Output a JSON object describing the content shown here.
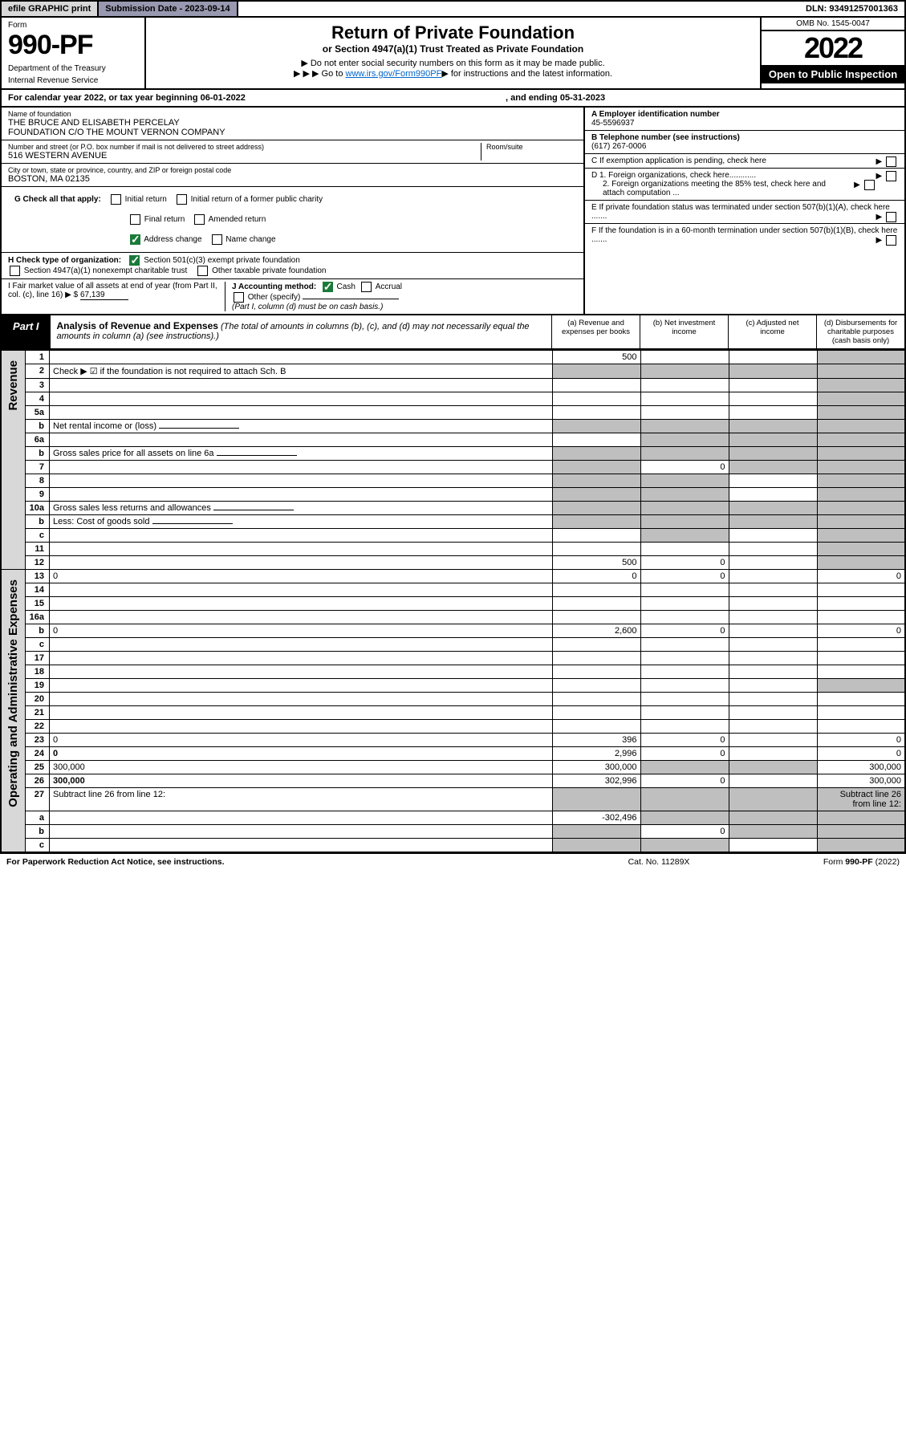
{
  "topbar": {
    "efile": "efile GRAPHIC print",
    "subdate_label": "Submission Date - 2023-09-14",
    "dln": "DLN: 93491257001363"
  },
  "header": {
    "form_label": "Form",
    "form_number": "990-PF",
    "dept1": "Department of the Treasury",
    "dept2": "Internal Revenue Service",
    "title": "Return of Private Foundation",
    "subtitle": "or Section 4947(a)(1) Trust Treated as Private Foundation",
    "note1": "Do not enter social security numbers on this form as it may be made public.",
    "note2_pre": "Go to ",
    "note2_link": "www.irs.gov/Form990PF",
    "note2_post": " for instructions and the latest information.",
    "omb": "OMB No. 1545-0047",
    "year": "2022",
    "open": "Open to Public Inspection"
  },
  "calyear": {
    "text_a": "For calendar year 2022, or tax year beginning 06-01-2022",
    "text_b": ", and ending 05-31-2023"
  },
  "info": {
    "name_lbl": "Name of foundation",
    "name_val1": "THE BRUCE AND ELISABETH PERCELAY",
    "name_val2": "FOUNDATION C/O THE MOUNT VERNON COMPANY",
    "addr_lbl": "Number and street (or P.O. box number if mail is not delivered to street address)",
    "addr_val": "516 WESTERN AVENUE",
    "room_lbl": "Room/suite",
    "city_lbl": "City or town, state or province, country, and ZIP or foreign postal code",
    "city_val": "BOSTON, MA  02135",
    "a_lbl": "A Employer identification number",
    "a_val": "45-5596937",
    "b_lbl": "B Telephone number (see instructions)",
    "b_val": "(617) 267-0006",
    "c_lbl": "C If exemption application is pending, check here",
    "d1_lbl": "D 1. Foreign organizations, check here............",
    "d2_lbl": "2. Foreign organizations meeting the 85% test, check here and attach computation ...",
    "e_lbl": "E  If private foundation status was terminated under section 507(b)(1)(A), check here .......",
    "f_lbl": "F  If the foundation is in a 60-month termination under section 507(b)(1)(B), check here .......",
    "g_lbl": "G Check all that apply:",
    "g_initial": "Initial return",
    "g_initial_former": "Initial return of a former public charity",
    "g_final": "Final return",
    "g_amended": "Amended return",
    "g_address": "Address change",
    "g_name": "Name change",
    "h_lbl": "H Check type of organization:",
    "h_501c3": "Section 501(c)(3) exempt private foundation",
    "h_4947": "Section 4947(a)(1) nonexempt charitable trust",
    "h_other": "Other taxable private foundation",
    "i_lbl": "I Fair market value of all assets at end of year (from Part II, col. (c), line 16)",
    "i_val": "67,139",
    "j_lbl": "J Accounting method:",
    "j_cash": "Cash",
    "j_accrual": "Accrual",
    "j_other": "Other (specify)",
    "j_note": "(Part I, column (d) must be on cash basis.)"
  },
  "part1": {
    "tab": "Part I",
    "title_b": "Analysis of Revenue and Expenses",
    "title_rest": " (The total of amounts in columns (b), (c), and (d) may not necessarily equal the amounts in column (a) (see instructions).)",
    "col_a": "(a)   Revenue and expenses per books",
    "col_b": "(b)   Net investment income",
    "col_c": "(c)   Adjusted net income",
    "col_d": "(d)   Disbursements for charitable purposes (cash basis only)"
  },
  "sidelabels": {
    "revenue": "Revenue",
    "expenses": "Operating and Administrative Expenses"
  },
  "rows": [
    {
      "n": "1",
      "d": "",
      "a": "500",
      "b": "",
      "c": "",
      "shade_d": true
    },
    {
      "n": "2",
      "d": "Check ▶ ☑ if the foundation is not required to attach Sch. B",
      "nocols": true
    },
    {
      "n": "3",
      "d": "",
      "a": "",
      "b": "",
      "c": "",
      "shade_d": true
    },
    {
      "n": "4",
      "d": "",
      "a": "",
      "b": "",
      "c": "",
      "shade_d": true
    },
    {
      "n": "5a",
      "d": "",
      "a": "",
      "b": "",
      "c": "",
      "shade_d": true
    },
    {
      "n": "b",
      "d": "Net rental income or (loss)",
      "nocols": true,
      "inline": true
    },
    {
      "n": "6a",
      "d": "",
      "a": "",
      "b": "",
      "c": "",
      "shade_b": true,
      "shade_c": true,
      "shade_d": true
    },
    {
      "n": "b",
      "d": "Gross sales price for all assets on line 6a",
      "nocols": true,
      "inline": true
    },
    {
      "n": "7",
      "d": "",
      "a": "",
      "b": "0",
      "c": "",
      "shade_a": true,
      "shade_c": true,
      "shade_d": true
    },
    {
      "n": "8",
      "d": "",
      "a": "",
      "b": "",
      "c": "",
      "shade_a": true,
      "shade_b": true,
      "shade_d": true
    },
    {
      "n": "9",
      "d": "",
      "a": "",
      "b": "",
      "c": "",
      "shade_a": true,
      "shade_b": true,
      "shade_d": true
    },
    {
      "n": "10a",
      "d": "Gross sales less returns and allowances",
      "nocols": true,
      "inline": true
    },
    {
      "n": "b",
      "d": "Less: Cost of goods sold",
      "nocols": true,
      "inline": true
    },
    {
      "n": "c",
      "d": "",
      "a": "",
      "b": "",
      "c": "",
      "shade_b": true,
      "shade_d": true
    },
    {
      "n": "11",
      "d": "",
      "a": "",
      "b": "",
      "c": "",
      "shade_d": true
    },
    {
      "n": "12",
      "d": "",
      "a": "500",
      "b": "0",
      "c": "",
      "bold": true,
      "shade_d": true
    }
  ],
  "exp_rows": [
    {
      "n": "13",
      "d": "0",
      "a": "0",
      "b": "0",
      "c": ""
    },
    {
      "n": "14",
      "d": "",
      "a": "",
      "b": "",
      "c": ""
    },
    {
      "n": "15",
      "d": "",
      "a": "",
      "b": "",
      "c": ""
    },
    {
      "n": "16a",
      "d": "",
      "a": "",
      "b": "",
      "c": ""
    },
    {
      "n": "b",
      "d": "0",
      "a": "2,600",
      "b": "0",
      "c": ""
    },
    {
      "n": "c",
      "d": "",
      "a": "",
      "b": "",
      "c": ""
    },
    {
      "n": "17",
      "d": "",
      "a": "",
      "b": "",
      "c": ""
    },
    {
      "n": "18",
      "d": "",
      "a": "",
      "b": "",
      "c": ""
    },
    {
      "n": "19",
      "d": "",
      "a": "",
      "b": "",
      "c": "",
      "shade_d": true
    },
    {
      "n": "20",
      "d": "",
      "a": "",
      "b": "",
      "c": ""
    },
    {
      "n": "21",
      "d": "",
      "a": "",
      "b": "",
      "c": ""
    },
    {
      "n": "22",
      "d": "",
      "a": "",
      "b": "",
      "c": ""
    },
    {
      "n": "23",
      "d": "0",
      "a": "396",
      "b": "0",
      "c": ""
    },
    {
      "n": "24",
      "d": "0",
      "a": "2,996",
      "b": "0",
      "c": "",
      "bold": true
    },
    {
      "n": "25",
      "d": "300,000",
      "a": "300,000",
      "b": "",
      "c": "",
      "shade_b": true,
      "shade_c": true
    },
    {
      "n": "26",
      "d": "300,000",
      "a": "302,996",
      "b": "0",
      "c": "",
      "bold": true
    },
    {
      "n": "27",
      "d": "Subtract line 26 from line 12:",
      "shade_a": true,
      "shade_b": true,
      "shade_c": true,
      "shade_d": true
    },
    {
      "n": "a",
      "d": "",
      "a": "-302,496",
      "b": "",
      "c": "",
      "bold": true,
      "shade_b": true,
      "shade_c": true,
      "shade_d": true
    },
    {
      "n": "b",
      "d": "",
      "a": "",
      "b": "0",
      "c": "",
      "bold": true,
      "shade_a": true,
      "shade_c": true,
      "shade_d": true
    },
    {
      "n": "c",
      "d": "",
      "a": "",
      "b": "",
      "c": "",
      "bold": true,
      "shade_a": true,
      "shade_b": true,
      "shade_d": true
    }
  ],
  "footer": {
    "left": "For Paperwork Reduction Act Notice, see instructions.",
    "mid": "Cat. No. 11289X",
    "right": "Form 990-PF (2022)"
  }
}
